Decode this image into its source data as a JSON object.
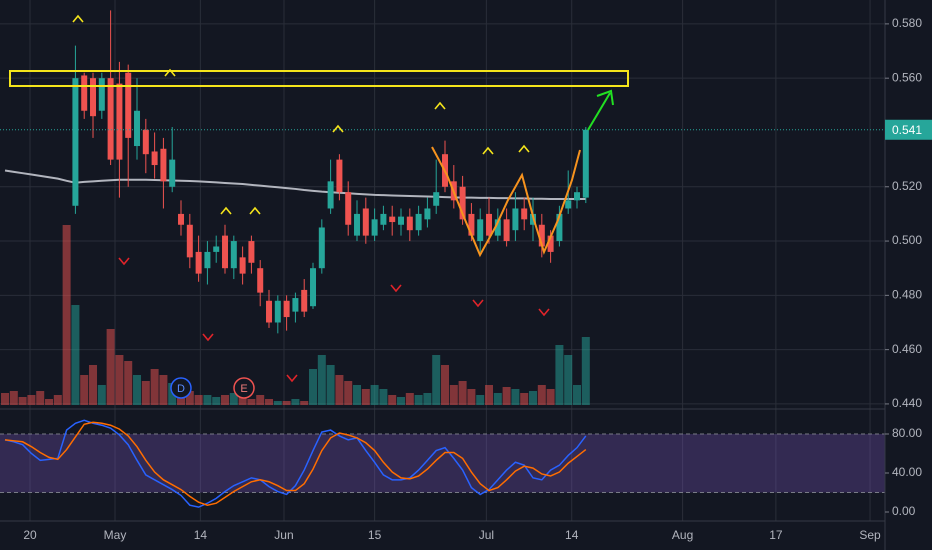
{
  "chart_data": [
    {
      "type": "candlestick",
      "x": [
        0,
        1,
        2,
        3,
        4,
        5,
        6,
        7,
        8,
        9,
        10,
        11,
        12,
        13,
        14,
        15,
        16,
        17,
        18,
        19,
        20,
        21,
        22,
        23,
        24,
        25,
        26,
        27,
        28,
        29,
        30,
        31,
        32,
        33,
        34,
        35,
        36,
        37,
        38,
        39,
        40,
        41,
        42,
        43,
        44,
        45,
        46,
        47,
        48,
        49,
        50,
        51,
        52,
        53,
        54,
        55,
        56,
        57,
        58,
        59,
        60,
        61,
        62,
        63,
        64,
        65,
        66
      ],
      "open": [
        null,
        null,
        null,
        null,
        null,
        null,
        null,
        null,
        0.513,
        0.561,
        0.56,
        0.548,
        0.56,
        0.558,
        0.562,
        0.535,
        0.541,
        0.533,
        0.534,
        0.52,
        0.51,
        0.506,
        0.496,
        0.49,
        0.496,
        0.502,
        0.49,
        0.494,
        0.5,
        0.49,
        0.478,
        0.47,
        0.478,
        0.474,
        0.482,
        0.476,
        0.49,
        0.512,
        0.53,
        0.518,
        0.502,
        0.512,
        0.502,
        0.506,
        0.509,
        0.506,
        0.509,
        0.504,
        0.508,
        0.513,
        0.532,
        0.522,
        0.52,
        0.51,
        0.5,
        0.51,
        0.502,
        0.508,
        0.504,
        0.512,
        0.506,
        0.506,
        0.502,
        0.5,
        0.512,
        0.515,
        0.516
      ],
      "high": [
        null,
        null,
        null,
        null,
        null,
        null,
        null,
        null,
        0.572,
        0.562,
        0.562,
        0.562,
        0.585,
        0.566,
        0.565,
        0.56,
        0.545,
        0.54,
        0.538,
        0.542,
        0.515,
        0.51,
        0.502,
        0.5,
        0.502,
        0.506,
        0.502,
        0.498,
        0.502,
        0.493,
        0.482,
        0.48,
        0.48,
        0.481,
        0.486,
        0.492,
        0.508,
        0.53,
        0.532,
        0.522,
        0.515,
        0.516,
        0.512,
        0.513,
        0.513,
        0.512,
        0.512,
        0.513,
        0.516,
        0.53,
        0.537,
        0.528,
        0.524,
        0.514,
        0.512,
        0.516,
        0.512,
        0.512,
        0.518,
        0.516,
        0.516,
        0.51,
        0.504,
        0.513,
        0.526,
        0.52,
        0.542
      ],
      "low": [
        null,
        null,
        null,
        null,
        null,
        null,
        null,
        null,
        0.51,
        0.545,
        0.538,
        0.545,
        0.528,
        0.516,
        0.52,
        0.53,
        0.525,
        0.523,
        0.512,
        0.518,
        0.502,
        0.49,
        0.485,
        0.484,
        0.492,
        0.488,
        0.486,
        0.484,
        0.488,
        0.476,
        0.468,
        0.466,
        0.467,
        0.47,
        0.472,
        0.475,
        0.488,
        0.51,
        0.515,
        0.502,
        0.5,
        0.499,
        0.5,
        0.504,
        0.502,
        0.502,
        0.5,
        0.502,
        0.505,
        0.51,
        0.518,
        0.512,
        0.506,
        0.5,
        0.496,
        0.499,
        0.5,
        0.498,
        0.5,
        0.504,
        0.5,
        0.494,
        0.492,
        0.498,
        0.51,
        0.512,
        0.514
      ],
      "close": [
        null,
        null,
        null,
        null,
        null,
        null,
        null,
        null,
        0.56,
        0.548,
        0.546,
        0.56,
        0.53,
        0.53,
        0.538,
        0.548,
        0.532,
        0.528,
        0.522,
        0.53,
        0.506,
        0.494,
        0.488,
        0.496,
        0.498,
        0.49,
        0.5,
        0.488,
        0.492,
        0.481,
        0.47,
        0.478,
        0.472,
        0.479,
        0.474,
        0.49,
        0.505,
        0.522,
        0.518,
        0.506,
        0.51,
        0.502,
        0.508,
        0.51,
        0.507,
        0.509,
        0.504,
        0.51,
        0.512,
        0.518,
        0.52,
        0.515,
        0.508,
        0.502,
        0.508,
        0.502,
        0.508,
        0.5,
        0.512,
        0.508,
        0.51,
        0.498,
        0.496,
        0.51,
        0.515,
        0.518,
        0.541
      ],
      "ma": [
        0.526,
        0.5255,
        0.525,
        0.5245,
        0.524,
        0.5235,
        0.523,
        0.5222,
        0.5215,
        0.5218,
        0.522,
        0.5222,
        0.5224,
        0.5226,
        0.5226,
        0.5226,
        0.5226,
        0.5225,
        0.5224,
        0.5223,
        0.5222,
        0.5221,
        0.522,
        0.5218,
        0.5216,
        0.5214,
        0.5212,
        0.521,
        0.5207,
        0.5204,
        0.5201,
        0.5198,
        0.5195,
        0.5192,
        0.5188,
        0.5185,
        0.5182,
        0.518,
        0.5178,
        0.5176,
        0.5174,
        0.5172,
        0.517,
        0.5169,
        0.5168,
        0.5167,
        0.5166,
        0.5165,
        0.5164,
        0.5163,
        0.5162,
        0.5161,
        0.516,
        0.516,
        0.5159,
        0.5159,
        0.5158,
        0.5158,
        0.5157,
        0.5157,
        0.5156,
        0.5156,
        0.5155,
        0.5155,
        0.5155,
        0.5155,
        0.5155
      ],
      "ma_color": "#b2b5be",
      "volume": [
        6,
        7,
        4,
        5,
        7,
        3,
        5,
        90,
        50,
        15,
        20,
        10,
        38,
        25,
        22,
        15,
        12,
        18,
        15,
        11,
        6,
        7,
        5,
        5,
        4,
        5,
        6,
        4,
        3,
        5,
        3,
        2,
        2,
        3,
        2,
        18,
        25,
        20,
        15,
        12,
        10,
        8,
        10,
        8,
        5,
        4,
        6,
        5,
        6,
        25,
        20,
        10,
        12,
        8,
        5,
        10,
        6,
        9,
        8,
        6,
        7,
        10,
        8,
        30,
        25,
        10,
        34
      ],
      "volume_lim": [
        0,
        100
      ],
      "up_color": "#26a69a",
      "down_color": "#ef5350",
      "xlim": [
        -0.57,
        100
      ],
      "xticks": [
        {
          "value": 2.84,
          "label": "20"
        },
        {
          "value": 12.5,
          "label": "May"
        },
        {
          "value": 22.2,
          "label": "14"
        },
        {
          "value": 31.7,
          "label": "Jun"
        },
        {
          "value": 42.0,
          "label": "15"
        },
        {
          "value": 54.7,
          "label": "Jul"
        },
        {
          "value": 64.4,
          "label": "14"
        },
        {
          "value": 77.0,
          "label": "Aug"
        },
        {
          "value": 87.6,
          "label": "17"
        },
        {
          "value": 98.3,
          "label": "Sep"
        }
      ],
      "ylim": [
        0.4385,
        0.5888
      ],
      "yticks": [
        {
          "value": 0.44,
          "label": "0.440"
        },
        {
          "value": 0.46,
          "label": "0.460"
        },
        {
          "value": 0.48,
          "label": "0.480"
        },
        {
          "value": 0.5,
          "label": "0.500"
        },
        {
          "value": 0.52,
          "label": "0.520"
        },
        {
          "value": 0.56,
          "label": "0.560"
        },
        {
          "value": 0.58,
          "label": "0.580"
        }
      ],
      "grid": true,
      "events": [
        "D",
        "E"
      ]
    },
    {
      "type": "line",
      "x": [
        0,
        1,
        2,
        3,
        4,
        5,
        6,
        7,
        8,
        9,
        10,
        11,
        12,
        13,
        14,
        15,
        16,
        17,
        18,
        19,
        20,
        21,
        22,
        23,
        24,
        25,
        26,
        27,
        28,
        29,
        30,
        31,
        32,
        33,
        34,
        35,
        36,
        37,
        38,
        39,
        40,
        41,
        42,
        43,
        44,
        45,
        46,
        47,
        48,
        49,
        50,
        51,
        52,
        53,
        54,
        55,
        56,
        57,
        58,
        59,
        60,
        61,
        62,
        63,
        64,
        65,
        66
      ],
      "series": [
        {
          "color": "#2962ff",
          "values": [
            74,
            72,
            69,
            60,
            53,
            54,
            55,
            84,
            91,
            94,
            91,
            89,
            86,
            79,
            69,
            53,
            38,
            33,
            28,
            23,
            17,
            7,
            5,
            9,
            14,
            21,
            27,
            31,
            35,
            33,
            26,
            21,
            18,
            27,
            43,
            63,
            82,
            84,
            78,
            74,
            76,
            63,
            51,
            38,
            33,
            33,
            35,
            43,
            53,
            63,
            66,
            55,
            43,
            25,
            18,
            23,
            33,
            43,
            51,
            48,
            35,
            33,
            43,
            48,
            58,
            66,
            78
          ]
        },
        {
          "color": "#ff6d00",
          "values": [
            74,
            73,
            72,
            67,
            61,
            56,
            54,
            64,
            77,
            90,
            92,
            91,
            89,
            85,
            78,
            67,
            53,
            41,
            33,
            28,
            23,
            16,
            10,
            7,
            9,
            15,
            21,
            26,
            31,
            33,
            31,
            27,
            22,
            22,
            29,
            44,
            63,
            76,
            81,
            79,
            76,
            71,
            63,
            51,
            41,
            35,
            34,
            37,
            44,
            53,
            61,
            61,
            55,
            41,
            29,
            22,
            25,
            33,
            42,
            47,
            45,
            39,
            37,
            41,
            50,
            57,
            64
          ]
        }
      ],
      "band": [
        20,
        80
      ],
      "band_color": "#7e57c2",
      "xlim": [
        -0.57,
        100
      ],
      "ylim": [
        -8.2,
        104.6
      ],
      "yticks": [
        {
          "value": 0,
          "label": "0.00"
        },
        {
          "value": 40,
          "label": "40.00"
        },
        {
          "value": 80,
          "label": "80.00"
        }
      ]
    }
  ]
}
